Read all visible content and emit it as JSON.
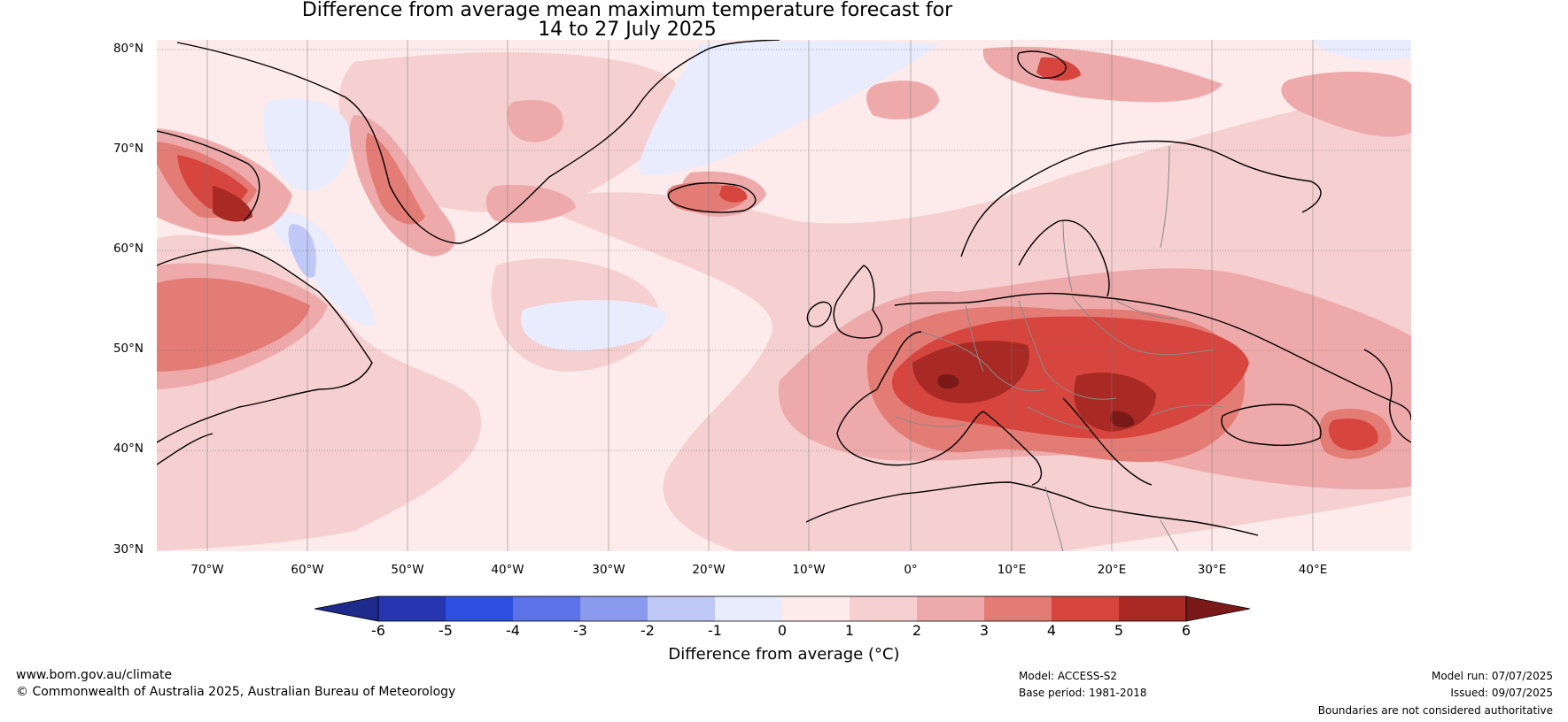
{
  "title_line1": "Difference from average mean maximum temperature forecast for",
  "title_line2": "14 to 27 July 2025",
  "lat_labels": [
    "80°N",
    "70°N",
    "60°N",
    "50°N",
    "40°N",
    "30°N"
  ],
  "lon_labels": [
    "70°W",
    "60°W",
    "50°W",
    "40°W",
    "30°W",
    "20°W",
    "10°W",
    "0°",
    "10°E",
    "20°E",
    "30°E",
    "40°E"
  ],
  "colorbar": {
    "title": "Difference from average (°C)",
    "ticks": [
      "-6",
      "-5",
      "-4",
      "-3",
      "-2",
      "-1",
      "0",
      "1",
      "2",
      "3",
      "4",
      "5",
      "6"
    ],
    "colors": [
      "#1e2a8c",
      "#2536b0",
      "#2f4fe0",
      "#5b72e8",
      "#8a9bee",
      "#bfc8f6",
      "#e8ecfc",
      "#fdeaea",
      "#f6d0d0",
      "#eeaaaa",
      "#e47c76",
      "#d6463e",
      "#a92a25",
      "#7a1a18"
    ]
  },
  "footer": {
    "url": "www.bom.gov.au/climate",
    "copyright": "© Commonwealth of Australia 2025, Australian Bureau of Meteorology",
    "model": "Model: ACCESS-S2",
    "base_period": "Base period: 1981-2018",
    "model_run": "Model run: 07/07/2025",
    "issued": "Issued: 09/07/2025",
    "disclaimer": "Boundaries are not considered authoritative"
  }
}
